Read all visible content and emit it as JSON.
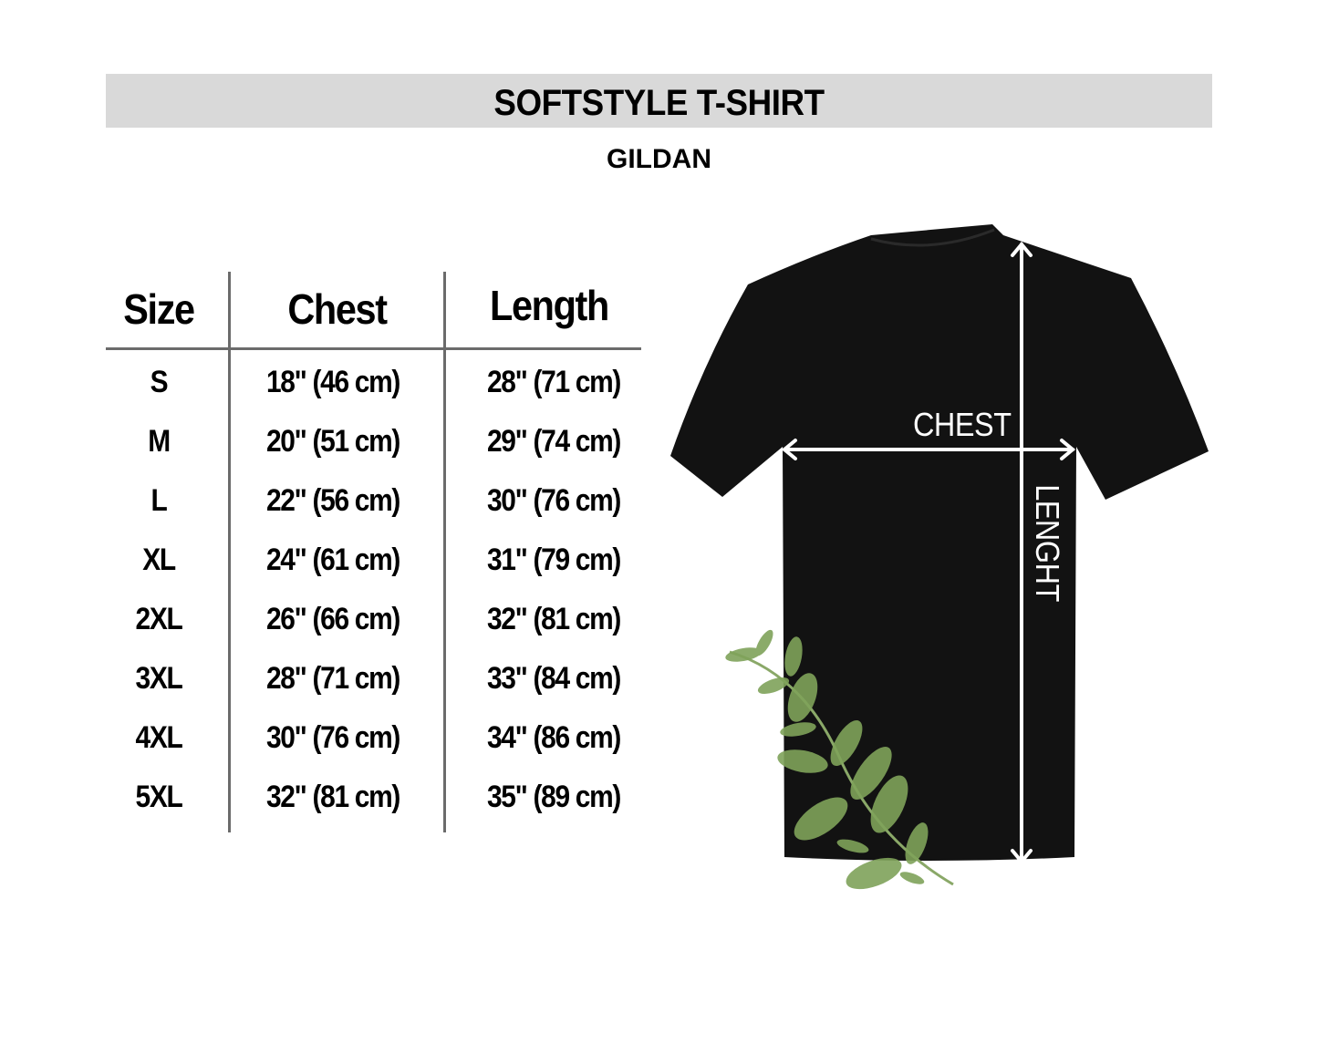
{
  "header": {
    "title": "SOFTSTYLE T-SHIRT",
    "brand": "GILDAN"
  },
  "table": {
    "columns": [
      "Size",
      "Chest",
      "Length"
    ],
    "rows": [
      {
        "size": "S",
        "chest": "18\" (46 cm)",
        "length": "28\" (71 cm)"
      },
      {
        "size": "M",
        "chest": "20\" (51 cm)",
        "length": "29\" (74 cm)"
      },
      {
        "size": "L",
        "chest": "22\" (56 cm)",
        "length": "30\" (76 cm)"
      },
      {
        "size": "XL",
        "chest": "24\" (61 cm)",
        "length": "31\" (79 cm)"
      },
      {
        "size": "2XL",
        "chest": "26\" (66 cm)",
        "length": "32\" (81 cm)"
      },
      {
        "size": "3XL",
        "chest": "28\" (71 cm)",
        "length": "33\" (84 cm)"
      },
      {
        "size": "4XL",
        "chest": "30\" (76 cm)",
        "length": "34\" (86 cm)"
      },
      {
        "size": "5XL",
        "chest": "32\" (81 cm)",
        "length": "35\" (89 cm)"
      }
    ]
  },
  "diagram": {
    "chest_label": "CHEST",
    "length_label": "LENGHT",
    "shirt_color": "#121212",
    "leaf_color": "#7fa35a"
  },
  "colors": {
    "banner": "#d9d9d9",
    "rule": "#6b6b6b"
  }
}
